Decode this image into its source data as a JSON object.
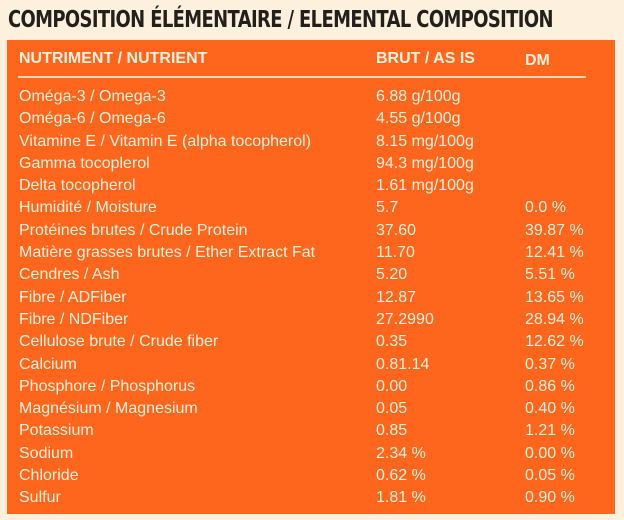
{
  "title": "COMPOSITION ÉLÉMENTAIRE / ELEMENTAL COMPOSITION",
  "table": {
    "headers": {
      "nutrient": "NUTRIMENT / NUTRIENT",
      "as_is": "BRUT / AS IS",
      "dm": "DM"
    },
    "rows": [
      {
        "nutrient": "Oméga-3 / Omega-3",
        "as_is": "6.88 g/100g",
        "dm": ""
      },
      {
        "nutrient": "Oméga-6 / Omega-6",
        "as_is": "4.55 g/100g",
        "dm": ""
      },
      {
        "nutrient": "Vitamine E / Vitamin E (alpha tocopherol)",
        "as_is": "8.15 mg/100g",
        "dm": ""
      },
      {
        "nutrient": "Gamma tocoplerol",
        "as_is": "94.3 mg/100g",
        "dm": ""
      },
      {
        "nutrient": "Delta tocopherol",
        "as_is": "1.61 mg/100g",
        "dm": ""
      },
      {
        "nutrient": "Humidité / Moisture",
        "as_is": "5.7",
        "dm": "0.0 %"
      },
      {
        "nutrient": "Protéines brutes / Crude Protein",
        "as_is": "37.60",
        "dm": "39.87 %"
      },
      {
        "nutrient": "Matière grasses brutes / Ether Extract Fat",
        "as_is": "11.70",
        "dm": "12.41 %"
      },
      {
        "nutrient": "Cendres / Ash",
        "as_is": "5.20",
        "dm": "5.51 %"
      },
      {
        "nutrient": "Fibre / ADFiber",
        "as_is": "12.87",
        "dm": "13.65 %"
      },
      {
        "nutrient": "Fibre / NDFiber",
        "as_is": "27.2990",
        "dm": "28.94 %"
      },
      {
        "nutrient": "Cellulose brute / Crude fiber",
        "as_is": "0.35",
        "dm": "12.62 %"
      },
      {
        "nutrient": "Calcium",
        "as_is": "0.81.14",
        "dm": "0.37 %"
      },
      {
        "nutrient": "Phosphore / Phosphorus",
        "as_is": "0.00",
        "dm": "0.86 %"
      },
      {
        "nutrient": "Magnésium / Magnesium",
        "as_is": "0.05",
        "dm": "0.40 %"
      },
      {
        "nutrient": "Potassium",
        "as_is": "0.85",
        "dm": "1.21 %"
      },
      {
        "nutrient": "Sodium",
        "as_is": "2.34 %",
        "dm": "0.00 %"
      },
      {
        "nutrient": "Chloride",
        "as_is": "0.62 %",
        "dm": "0.05 %"
      },
      {
        "nutrient": "Sulfur",
        "as_is": "1.81 %",
        "dm": "0.90 %"
      }
    ]
  },
  "colors": {
    "background": "#fdf0dc",
    "panel": "#fd661c",
    "text_light": "#fdf0dc",
    "title_dark": "#231f1c"
  }
}
